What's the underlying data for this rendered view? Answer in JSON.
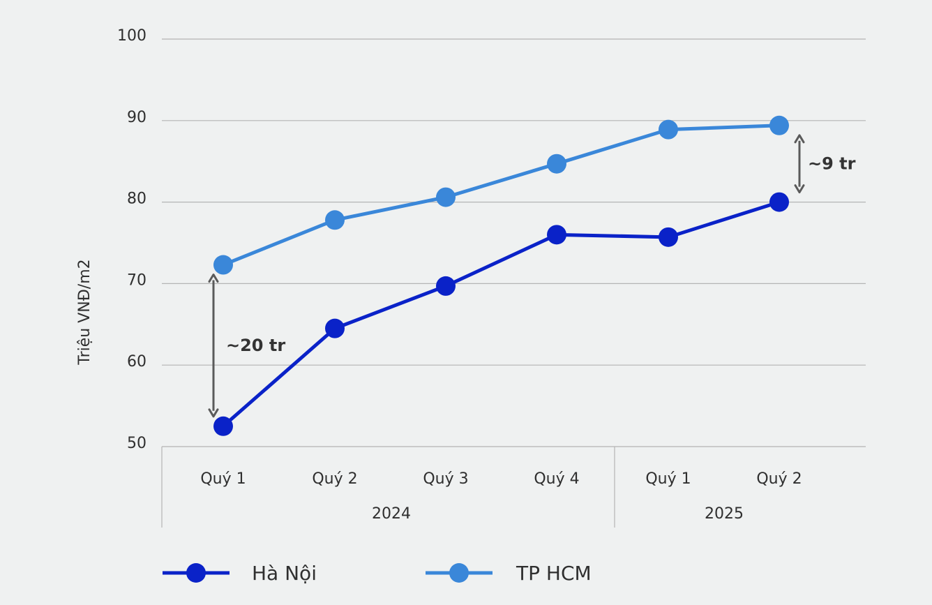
{
  "chart_data": {
    "type": "line",
    "title": "",
    "xlabel": "",
    "ylabel": "Triệu VNĐ/m2",
    "ylim": [
      50,
      100
    ],
    "yticks": [
      50,
      60,
      70,
      80,
      90,
      100
    ],
    "grid": true,
    "categories": [
      "Quý 1",
      "Quý 2",
      "Quý 3",
      "Quý 4",
      "Quý 1",
      "Quý 2"
    ],
    "groups": [
      {
        "label": "2024",
        "start": 0,
        "end": 3
      },
      {
        "label": "2025",
        "start": 4,
        "end": 5
      }
    ],
    "series": [
      {
        "name": "Hà Nội",
        "color": "#0a22c8",
        "values": [
          52.5,
          64.5,
          69.7,
          76.0,
          75.7,
          80.0
        ]
      },
      {
        "name": "TP HCM",
        "color": "#3a87d9",
        "values": [
          72.3,
          77.8,
          80.6,
          84.7,
          88.9,
          89.4
        ]
      }
    ],
    "annotations": [
      {
        "text": "~20 tr",
        "category_index": 0,
        "from": 52.5,
        "to": 72.3
      },
      {
        "text": "~9 tr",
        "category_index": 5,
        "from": 80.0,
        "to": 89.4
      }
    ],
    "legend_position": "bottom-left"
  }
}
